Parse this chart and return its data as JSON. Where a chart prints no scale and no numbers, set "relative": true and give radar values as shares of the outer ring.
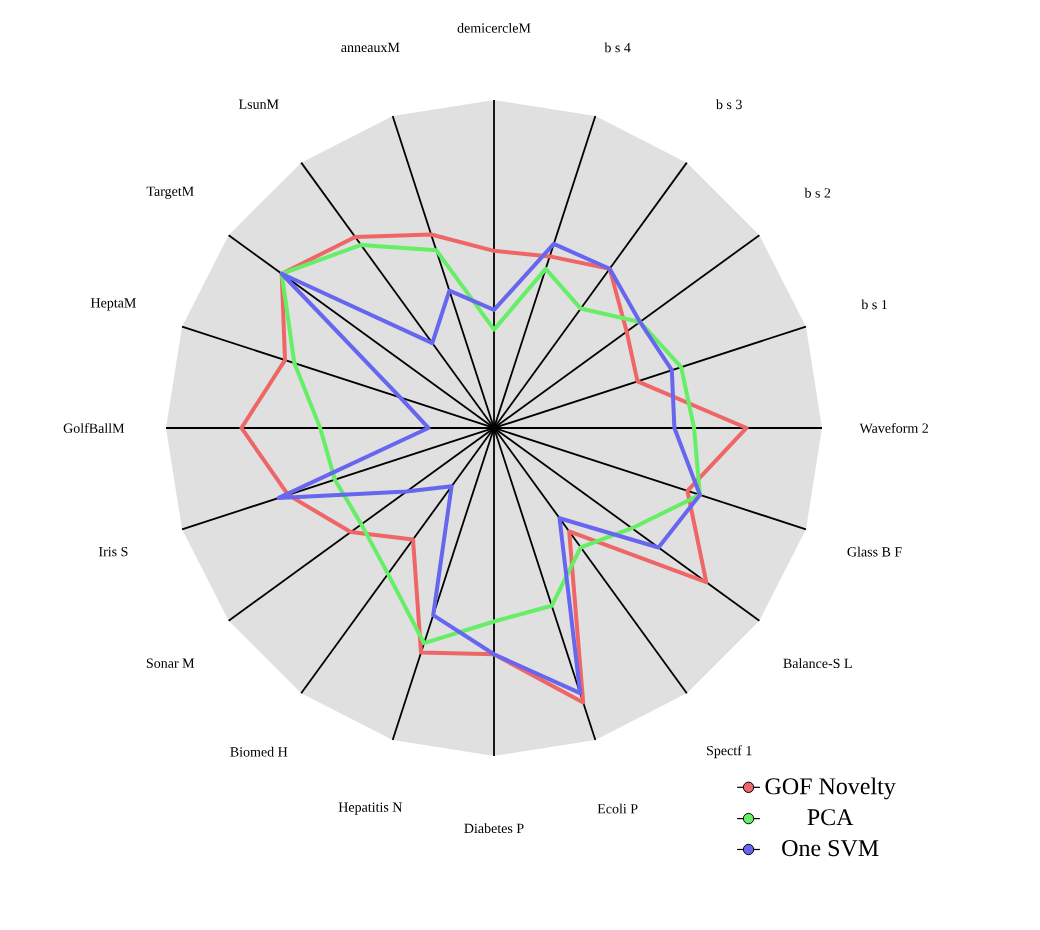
{
  "chart_data": {
    "type": "radar",
    "relative": true,
    "grid": true,
    "legend": "bottom right",
    "categories": [
      "demicercleM",
      "b s 4",
      "b s 3",
      "b s 2",
      "b s 1",
      "Waveform 2",
      "Glass B F",
      "Balance-S L",
      "Spectf 1",
      "Ecoli P",
      "Diabetes P",
      "Hepatitis N",
      "Biomed H",
      "Sonar M",
      "Iris S",
      "GolfBallM",
      "HeptaM",
      "TargetM",
      "LsunM",
      "anneauxM"
    ],
    "series": [
      {
        "name": "GOF Novelty",
        "color": "#ee6666",
        "values": [
          0.54,
          0.55,
          0.6,
          0.5,
          0.46,
          0.77,
          0.62,
          0.8,
          0.39,
          0.88,
          0.69,
          0.72,
          0.42,
          0.54,
          0.66,
          0.77,
          0.67,
          0.8,
          0.72,
          0.62
        ]
      },
      {
        "name": "PCA",
        "color": "#66ee66",
        "values": [
          0.3,
          0.51,
          0.45,
          0.55,
          0.6,
          0.61,
          0.66,
          0.52,
          0.45,
          0.57,
          0.59,
          0.69,
          0.55,
          0.5,
          0.51,
          0.53,
          0.64,
          0.8,
          0.69,
          0.57
        ]
      },
      {
        "name": "One SVM",
        "color": "#6666ee",
        "values": [
          0.36,
          0.59,
          0.6,
          0.55,
          0.57,
          0.55,
          0.66,
          0.62,
          0.34,
          0.85,
          0.69,
          0.6,
          0.22,
          0.33,
          0.69,
          0.2,
          0.3,
          0.8,
          0.32,
          0.44
        ]
      }
    ]
  }
}
